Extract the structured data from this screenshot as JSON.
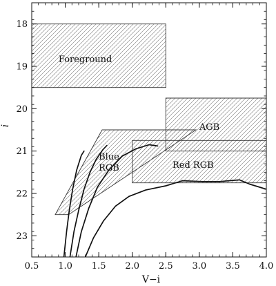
{
  "chart_data": {
    "type": "line",
    "title": "",
    "xlabel": "V−i",
    "ylabel": "i",
    "xlim": [
      0.5,
      4.0
    ],
    "ylim": [
      23.5,
      17.5
    ],
    "y_inverted": true,
    "grid": false,
    "xticks": [
      0.5,
      1.0,
      1.5,
      2.0,
      2.5,
      3.0,
      3.5,
      4.0
    ],
    "xtick_labels": [
      "0.5",
      "1.0",
      "1.5",
      "2.0",
      "2.5",
      "3.0",
      "3.5",
      "4.0"
    ],
    "yticks": [
      18,
      19,
      20,
      21,
      22,
      23
    ],
    "ytick_labels": [
      "18",
      "19",
      "20",
      "21",
      "22",
      "23"
    ],
    "regions": [
      {
        "id": "foreground",
        "label": "Foreground",
        "polygon": [
          [
            0.5,
            18.0
          ],
          [
            2.5,
            18.0
          ],
          [
            2.5,
            19.5
          ],
          [
            0.5,
            19.5
          ]
        ],
        "label_pos": [
          0.9,
          18.9
        ]
      },
      {
        "id": "agb",
        "label": "AGB",
        "polygon": [
          [
            2.5,
            19.75
          ],
          [
            4.0,
            19.75
          ],
          [
            4.0,
            21.0
          ],
          [
            2.5,
            21.0
          ]
        ],
        "label_pos": [
          3.0,
          20.5
        ]
      },
      {
        "id": "blue-rgb",
        "label": "Blue RGB",
        "polygon": [
          [
            0.85,
            22.5
          ],
          [
            1.55,
            20.5
          ],
          [
            2.95,
            20.5
          ],
          [
            1.05,
            22.5
          ]
        ],
        "label_pos": [
          1.5,
          21.2
        ]
      },
      {
        "id": "red-rgb",
        "label": "Red RGB",
        "polygon": [
          [
            2.0,
            20.75
          ],
          [
            4.0,
            20.75
          ],
          [
            4.0,
            21.75
          ],
          [
            2.0,
            21.75
          ]
        ],
        "label_pos": [
          2.6,
          21.4
        ]
      }
    ],
    "series": [
      {
        "points": [
          [
            0.98,
            23.5
          ],
          [
            1.02,
            22.9
          ],
          [
            1.06,
            22.4
          ],
          [
            1.11,
            21.9
          ],
          [
            1.17,
            21.45
          ],
          [
            1.24,
            21.1
          ],
          [
            1.28,
            21.0
          ]
        ]
      },
      {
        "points": [
          [
            1.07,
            23.5
          ],
          [
            1.13,
            22.9
          ],
          [
            1.2,
            22.4
          ],
          [
            1.28,
            21.9
          ],
          [
            1.37,
            21.5
          ],
          [
            1.46,
            21.2
          ],
          [
            1.56,
            20.97
          ],
          [
            1.62,
            20.87
          ]
        ]
      },
      {
        "points": [
          [
            1.16,
            23.5
          ],
          [
            1.24,
            22.9
          ],
          [
            1.35,
            22.35
          ],
          [
            1.48,
            21.85
          ],
          [
            1.65,
            21.45
          ],
          [
            1.85,
            21.12
          ],
          [
            2.05,
            20.95
          ],
          [
            2.25,
            20.85
          ],
          [
            2.38,
            20.88
          ]
        ]
      },
      {
        "points": [
          [
            1.3,
            23.5
          ],
          [
            1.42,
            23.05
          ],
          [
            1.57,
            22.65
          ],
          [
            1.75,
            22.3
          ],
          [
            1.95,
            22.07
          ],
          [
            2.2,
            21.92
          ],
          [
            2.5,
            21.82
          ],
          [
            2.75,
            21.7
          ],
          [
            3.05,
            21.72
          ],
          [
            3.3,
            21.72
          ],
          [
            3.6,
            21.68
          ],
          [
            3.75,
            21.78
          ],
          [
            4.0,
            21.9
          ]
        ]
      }
    ]
  }
}
